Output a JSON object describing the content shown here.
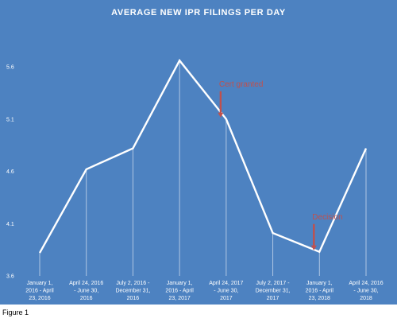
{
  "figure_caption": "Figure 1",
  "chart_data": {
    "type": "line",
    "title": "AVERAGE NEW IPR FILINGS PER DAY",
    "xlabel": "",
    "ylabel": "",
    "ylim": [
      3.6,
      5.6
    ],
    "yticks": [
      "3.6",
      "4.1",
      "4.6",
      "5.1",
      "5.6"
    ],
    "grid": false,
    "categories": [
      [
        "January 1,",
        "2016 - April",
        "23, 2016"
      ],
      [
        "April 24, 2016",
        "- June 30,",
        "2016"
      ],
      [
        "July 2, 2016 -",
        "December 31,",
        "2016"
      ],
      [
        "January 1,",
        "2016 - April",
        "23, 2017"
      ],
      [
        "April 24, 2017",
        "- June 30,",
        "2017"
      ],
      [
        "July 2, 2017 -",
        "December 31,",
        "2017"
      ],
      [
        "January 1,",
        "2016 - April",
        "23, 2018"
      ],
      [
        "April 24, 2016",
        "- June 30,",
        "2018"
      ]
    ],
    "values": [
      3.82,
      4.62,
      4.82,
      5.66,
      5.1,
      4.01,
      3.83,
      4.82
    ],
    "annotations": [
      {
        "text": "Cert granted",
        "point_index": 4
      },
      {
        "text": "Decision",
        "point_index": 6
      }
    ],
    "colors": {
      "background": "#4d82c1",
      "line": "#ffffff",
      "annotation": "#c0504d"
    }
  }
}
